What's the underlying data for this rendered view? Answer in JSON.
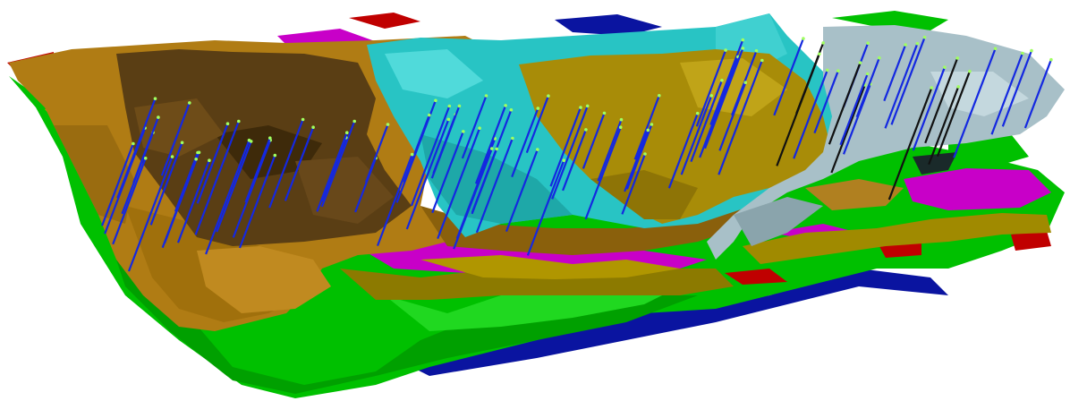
{
  "scene": {
    "type": "3d-geological-model",
    "background": "#ffffff",
    "layer_colors": {
      "base": "#00c800",
      "deep": "#0a14a0",
      "red": "#c00000",
      "magenta": "#c800c8",
      "olive": "#8c7a00",
      "brown": "#7a5a14",
      "dark_brown": "#4a3210",
      "cyan": "#20c8c8",
      "silver": "#a8c0c8"
    },
    "well_color": "#1428e0",
    "well_top_marker_color": "#a0ff60"
  }
}
